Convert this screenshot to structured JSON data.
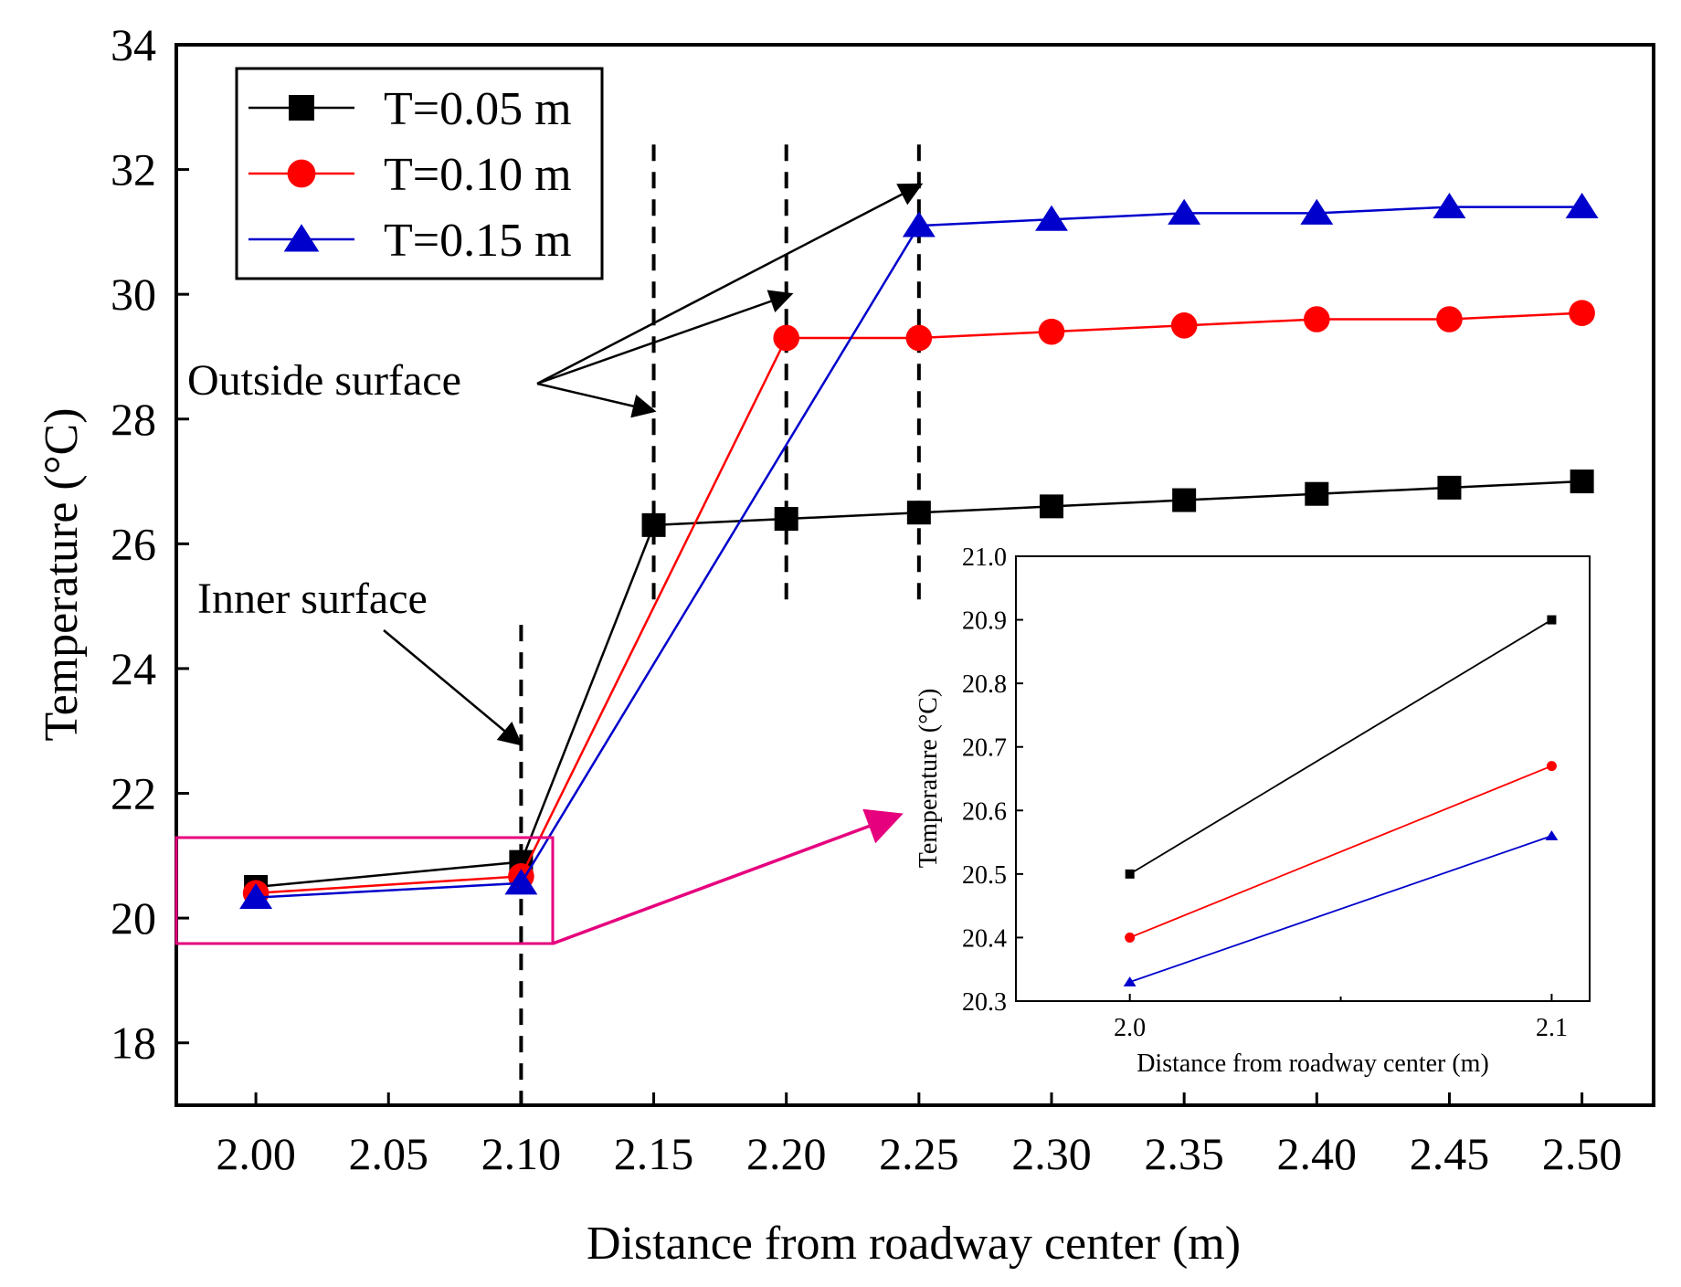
{
  "chart_data": [
    {
      "type": "line",
      "title": "",
      "xlabel": "Distance from roadway center (m)",
      "ylabel": "Temperature (°C)",
      "xlim": [
        1.97,
        2.527
      ],
      "ylim": [
        17,
        34
      ],
      "x_ticks": [
        "2.00",
        "2.05",
        "2.10",
        "2.15",
        "2.20",
        "2.25",
        "2.30",
        "2.35",
        "2.40",
        "2.45",
        "2.50"
      ],
      "y_ticks": [
        "18",
        "20",
        "22",
        "24",
        "26",
        "28",
        "30",
        "32",
        "34"
      ],
      "legend_position": "top-left",
      "series": [
        {
          "name": "T=0.05 m",
          "color": "#000000",
          "marker": "square",
          "x": [
            2.0,
            2.1,
            2.15,
            2.2,
            2.25,
            2.3,
            2.35,
            2.4,
            2.45,
            2.5
          ],
          "values": [
            20.5,
            20.9,
            26.3,
            26.4,
            26.5,
            26.6,
            26.7,
            26.8,
            26.9,
            27.0
          ]
        },
        {
          "name": "T=0.10 m",
          "color": "#ff0000",
          "marker": "circle",
          "x": [
            2.0,
            2.1,
            2.2,
            2.25,
            2.3,
            2.35,
            2.4,
            2.45,
            2.5
          ],
          "values": [
            20.4,
            20.67,
            29.3,
            29.3,
            29.4,
            29.5,
            29.6,
            29.6,
            29.7
          ]
        },
        {
          "name": "T=0.15 m",
          "color": "#0000cc",
          "marker": "triangle",
          "x": [
            2.0,
            2.1,
            2.25,
            2.3,
            2.35,
            2.4,
            2.45,
            2.5
          ],
          "values": [
            20.33,
            20.56,
            31.1,
            31.2,
            31.3,
            31.3,
            31.4,
            31.4
          ]
        }
      ],
      "reference_lines_x": [
        2.1,
        2.15,
        2.2,
        2.25
      ],
      "annotations": [
        "Outside surface",
        "Inner surface"
      ]
    },
    {
      "type": "line",
      "title": "",
      "xlabel": "Distance from roadway center (m)",
      "ylabel": "Temperature (°C)",
      "xlim": [
        1.973,
        2.109
      ],
      "ylim": [
        20.3,
        21.0
      ],
      "x_ticks": [
        "2.0",
        "2.1"
      ],
      "y_ticks": [
        "20.3",
        "20.4",
        "20.5",
        "20.6",
        "20.7",
        "20.8",
        "20.9",
        "21.0"
      ],
      "series": [
        {
          "name": "T=0.05 m",
          "color": "#000000",
          "marker": "square",
          "x": [
            2.0,
            2.1
          ],
          "values": [
            20.5,
            20.9
          ]
        },
        {
          "name": "T=0.10 m",
          "color": "#ff0000",
          "marker": "circle",
          "x": [
            2.0,
            2.1
          ],
          "values": [
            20.4,
            20.67
          ]
        },
        {
          "name": "T=0.15 m",
          "color": "#0000cc",
          "marker": "triangle",
          "x": [
            2.0,
            2.1
          ],
          "values": [
            20.33,
            20.56
          ]
        }
      ]
    }
  ]
}
